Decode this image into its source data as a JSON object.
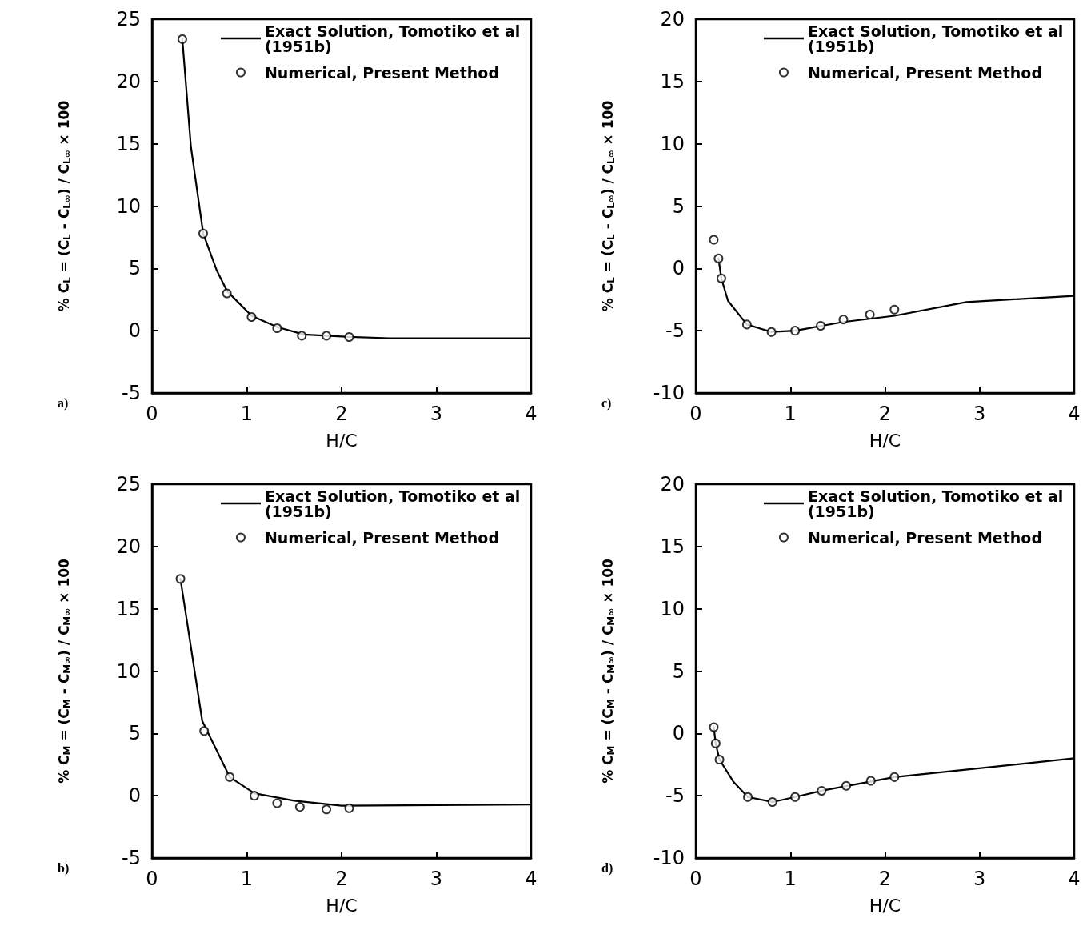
{
  "chart_data": [
    {
      "type": "line",
      "xlabel": "H/C",
      "ylabel": "% C$_{L}$ = (C$_{L}$ - C$_{L∞}$) / C$_{L∞}$ × 100",
      "annotations": [
        "a)"
      ],
      "legend": "top right",
      "grid": false,
      "xlim": [
        0,
        4
      ],
      "xticks": [
        0,
        1,
        2,
        3,
        4
      ],
      "ylim": [
        -5,
        25
      ],
      "yticks": [
        -5,
        0,
        5,
        10,
        15,
        20,
        25
      ],
      "series": [
        {
          "name": "Exact Solution, Tomotiko et al (1951b)",
          "type": "line",
          "marker": "none",
          "line_style": "solid",
          "color": "#000000",
          "x": [
            0.32,
            0.41,
            0.54,
            0.68,
            0.79,
            1.05,
            1.32,
            1.6,
            2.08,
            2.5,
            4.0
          ],
          "values": [
            23.4,
            14.8,
            7.8,
            4.9,
            3.2,
            1.2,
            0.3,
            -0.3,
            -0.5,
            -0.6,
            -0.6
          ]
        },
        {
          "name": "Numerical, Present Method",
          "type": "scatter",
          "marker": "circle",
          "color": "#000000",
          "x": [
            0.32,
            0.54,
            0.79,
            1.05,
            1.32,
            1.58,
            1.84,
            2.08
          ],
          "values": [
            23.4,
            7.8,
            3.0,
            1.1,
            0.2,
            -0.4,
            -0.4,
            -0.5
          ]
        }
      ]
    },
    {
      "type": "line",
      "xlabel": "H/C",
      "ylabel": "% C$_{L}$ = (C$_{L}$ - C$_{L∞}$) / C$_{L∞}$ × 100",
      "annotations": [
        "c)"
      ],
      "legend": "top right",
      "grid": false,
      "xlim": [
        0,
        4
      ],
      "xticks": [
        0,
        1,
        2,
        3,
        4
      ],
      "ylim": [
        -10,
        20
      ],
      "yticks": [
        -10,
        -5,
        0,
        5,
        10,
        15,
        20
      ],
      "series": [
        {
          "name": "Exact Solution, Tomotiko et al (1951b)",
          "type": "line",
          "marker": "none",
          "line_style": "solid",
          "color": "#000000",
          "x": [
            0.24,
            0.27,
            0.34,
            0.54,
            0.8,
            1.05,
            1.56,
            2.1,
            2.86,
            4.0
          ],
          "values": [
            0.8,
            -0.8,
            -2.6,
            -4.5,
            -5.1,
            -5.0,
            -4.3,
            -3.8,
            -2.7,
            -2.2
          ]
        },
        {
          "name": "Numerical, Present Method",
          "type": "scatter",
          "marker": "circle",
          "color": "#000000",
          "x": [
            0.19,
            0.24,
            0.27,
            0.54,
            0.8,
            1.05,
            1.32,
            1.56,
            1.84,
            2.1
          ],
          "values": [
            2.3,
            0.8,
            -0.8,
            -4.5,
            -5.1,
            -5.0,
            -4.6,
            -4.1,
            -3.7,
            -3.3
          ]
        }
      ]
    },
    {
      "type": "line",
      "xlabel": "H/C",
      "ylabel": "% C$_{M}$ = (C$_{M}$ - C$_{M∞}$) / C$_{M∞}$ × 100",
      "annotations": [
        "b)"
      ],
      "legend": "top right",
      "grid": false,
      "xlim": [
        0,
        4
      ],
      "xticks": [
        0,
        1,
        2,
        3,
        4
      ],
      "ylim": [
        -5,
        25
      ],
      "yticks": [
        -5,
        0,
        5,
        10,
        15,
        20,
        25
      ],
      "series": [
        {
          "name": "Exact Solution, Tomotiko et al (1951b)",
          "type": "line",
          "marker": "none",
          "line_style": "solid",
          "color": "#000000",
          "x": [
            0.3,
            0.53,
            0.82,
            1.08,
            1.5,
            2.0,
            4.0
          ],
          "values": [
            17.4,
            6.0,
            1.5,
            0.2,
            -0.4,
            -0.8,
            -0.7
          ]
        },
        {
          "name": "Numerical, Present Method",
          "type": "scatter",
          "marker": "circle",
          "color": "#000000",
          "x": [
            0.3,
            0.55,
            0.82,
            1.08,
            1.32,
            1.56,
            1.84,
            2.08
          ],
          "values": [
            17.4,
            5.2,
            1.5,
            0.0,
            -0.6,
            -0.9,
            -1.1,
            -1.0
          ]
        }
      ]
    },
    {
      "type": "line",
      "xlabel": "H/C",
      "ylabel": "% C$_{M}$ = (C$_{M}$ - C$_{M∞}$) / C$_{M∞}$ × 100",
      "annotations": [
        "d)"
      ],
      "legend": "top right",
      "grid": false,
      "xlim": [
        0,
        4
      ],
      "xticks": [
        0,
        1,
        2,
        3,
        4
      ],
      "ylim": [
        -10,
        20
      ],
      "yticks": [
        -10,
        -5,
        0,
        5,
        10,
        15,
        20
      ],
      "series": [
        {
          "name": "Exact Solution, Tomotiko et al (1951b)",
          "type": "line",
          "marker": "none",
          "line_style": "solid",
          "color": "#000000",
          "x": [
            0.19,
            0.21,
            0.25,
            0.4,
            0.55,
            0.81,
            1.05,
            1.33,
            2.1,
            4.0
          ],
          "values": [
            0.5,
            -0.8,
            -2.1,
            -3.9,
            -5.1,
            -5.5,
            -5.1,
            -4.6,
            -3.5,
            -2.0
          ]
        },
        {
          "name": "Numerical, Present Method",
          "type": "scatter",
          "marker": "circle",
          "color": "#000000",
          "x": [
            0.19,
            0.21,
            0.25,
            0.55,
            0.81,
            1.05,
            1.33,
            1.59,
            1.85,
            2.1
          ],
          "values": [
            0.5,
            -0.8,
            -2.1,
            -5.1,
            -5.5,
            -5.1,
            -4.6,
            -4.2,
            -3.8,
            -3.5
          ]
        }
      ]
    }
  ]
}
